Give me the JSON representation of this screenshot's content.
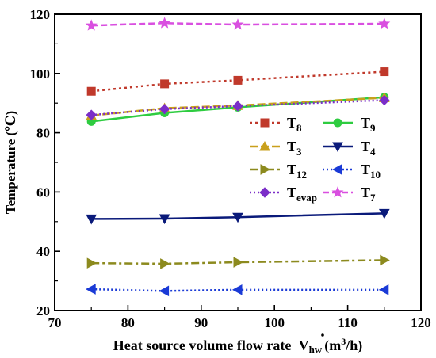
{
  "chart_data": {
    "type": "line",
    "xlabel": "Heat source volume flow rate",
    "xlabel_symbol": "V",
    "xlabel_symbol_sub": "hw",
    "xlabel_unit_open": "(m",
    "xlabel_unit_sup": "3",
    "xlabel_unit_close": "/h)",
    "ylabel": "Temperature (℃)",
    "xlim": [
      70,
      120
    ],
    "ylim": [
      20,
      120
    ],
    "xticks": [
      70,
      80,
      90,
      100,
      110,
      120
    ],
    "yticks": [
      20,
      40,
      60,
      80,
      100,
      120
    ],
    "grid": false,
    "legend_position": "center-right",
    "x": [
      75,
      85,
      95,
      115
    ],
    "series": [
      {
        "id": "t8",
        "name": "T",
        "sub": "8",
        "values": [
          94.0,
          96.5,
          97.7,
          100.6
        ],
        "color": "#c0392b",
        "marker": "square",
        "dash": "3,4",
        "width": 2.5
      },
      {
        "id": "t9",
        "name": "T",
        "sub": "9",
        "values": [
          83.8,
          86.7,
          88.6,
          92.0
        ],
        "color": "#2ecc40",
        "marker": "circle",
        "dash": "",
        "width": 2.5
      },
      {
        "id": "t3",
        "name": "T",
        "sub": "3",
        "values": [
          85.8,
          88.3,
          89.2,
          91.8
        ],
        "color": "#c9a01c",
        "marker": "triangle-up",
        "dash": "10,4",
        "width": 2.5
      },
      {
        "id": "t4",
        "name": "T",
        "sub": "4",
        "values": [
          50.9,
          51.0,
          51.5,
          52.8
        ],
        "color": "#0a1a7a",
        "marker": "triangle-down",
        "dash": "",
        "width": 2.5
      },
      {
        "id": "t12",
        "name": "T",
        "sub": "12",
        "values": [
          36.0,
          35.8,
          36.3,
          37.0
        ],
        "color": "#8c8a1e",
        "marker": "triangle-right",
        "dash": "10,4,3,4",
        "width": 2.5
      },
      {
        "id": "t10",
        "name": "T",
        "sub": "10",
        "values": [
          27.2,
          26.6,
          27.0,
          27.0
        ],
        "color": "#1a3ad6",
        "marker": "triangle-left",
        "dash": "2,3",
        "width": 2.5
      },
      {
        "id": "tevap",
        "name": "T",
        "sub": "evap",
        "values": [
          86.0,
          88.0,
          89.0,
          91.0
        ],
        "color": "#7b2ec8",
        "marker": "diamond",
        "dash": "2,3",
        "width": 2.5
      },
      {
        "id": "t7",
        "name": "T",
        "sub": "7",
        "values": [
          116.2,
          117.0,
          116.5,
          116.8
        ],
        "color": "#d94fe0",
        "marker": "star",
        "dash": "8,4",
        "width": 2.5
      }
    ]
  }
}
